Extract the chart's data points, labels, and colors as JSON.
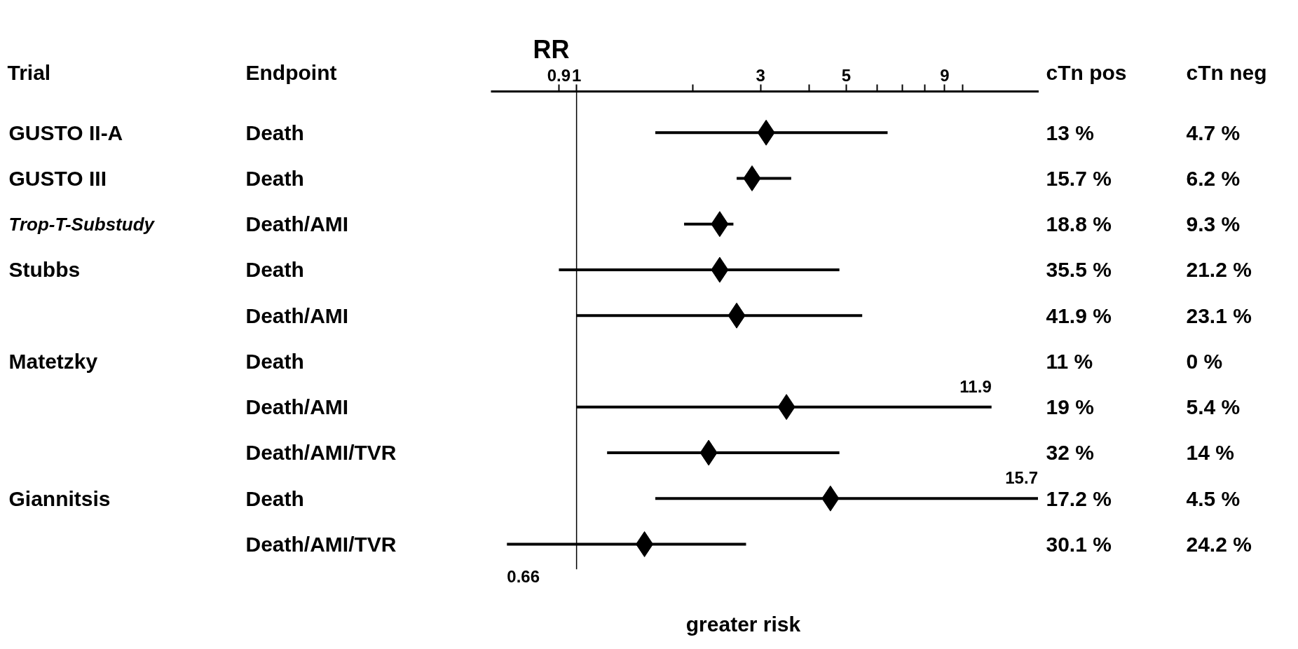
{
  "chart_data": {
    "type": "scatter",
    "orientation": "horizontal",
    "title": "RR",
    "ylabel": "Endpoint",
    "xlabel": "greater risk",
    "categories": [
      "Death",
      "Death",
      "Death/AMI",
      "Death",
      "Death/AMI",
      "Death",
      "Death/AMI",
      "Death/AMI/TVR",
      "Death",
      "Death/AMI/TVR"
    ],
    "values": [
      3.1,
      2.85,
      2.35,
      2.35,
      2.6,
      null,
      3.5,
      2.2,
      4.55,
      1.5
    ],
    "errors": [
      [
        1.6,
        6.4
      ],
      [
        2.6,
        3.6
      ],
      [
        1.9,
        2.55
      ],
      [
        0.9,
        4.8
      ],
      [
        1.0,
        5.5
      ],
      null,
      [
        1.0,
        11.9
      ],
      [
        1.2,
        4.8
      ],
      [
        1.6,
        15.7
      ],
      [
        0.66,
        2.75
      ]
    ],
    "color": "#000000",
    "marker": "diamond",
    "grid": false,
    "log": "x",
    "xlim": [
      0.6,
      15.8
    ],
    "xticks": [
      {
        "value": 0.9,
        "label": "0.9"
      },
      1,
      {
        "value": 2,
        "label": null
      },
      3,
      {
        "value": 4,
        "label": null
      },
      5,
      {
        "value": 6,
        "label": null
      },
      {
        "value": 7,
        "label": null
      },
      {
        "value": 8,
        "label": null
      },
      9,
      {
        "value": 10,
        "label": null
      }
    ],
    "ref_lines": [
      {
        "axis": "x",
        "value": 1,
        "color": "#000000"
      }
    ],
    "annotations": [
      "Trial",
      "cTn pos",
      "cTn neg",
      "GUSTO II-A",
      "GUSTO III",
      "Trop-T-Substudy",
      "Stubbs",
      "Matetzky",
      "Giannitsis",
      "13 %",
      "4.7 %",
      "15.7 %",
      "6.2 %",
      "18.8 %",
      "9.3 %",
      "35.5 %",
      "21.2 %",
      "41.9 %",
      "23.1 %",
      "11 %",
      "0 %",
      "19 %",
      "5.4 %",
      "32 %",
      "14 %",
      "17.2 %",
      "4.5 %",
      "30.1 %",
      "24.2 %",
      "11.9",
      "15.7",
      "0.66"
    ]
  }
}
